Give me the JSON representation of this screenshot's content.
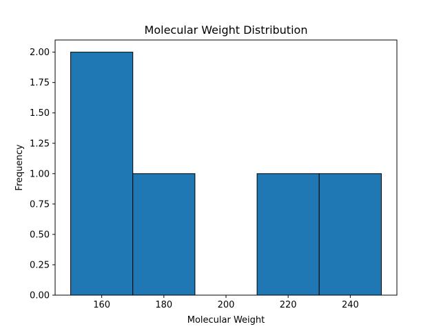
{
  "chart_data": {
    "type": "bar",
    "title": "Molecular Weight Distribution",
    "xlabel": "Molecular Weight",
    "ylabel": "Frequency",
    "bins": [
      {
        "start": 150,
        "end": 170,
        "count": 2
      },
      {
        "start": 170,
        "end": 190,
        "count": 1
      },
      {
        "start": 190,
        "end": 210,
        "count": 0
      },
      {
        "start": 210,
        "end": 230,
        "count": 1
      },
      {
        "start": 230,
        "end": 250,
        "count": 1
      }
    ],
    "xlim": [
      145,
      255
    ],
    "ylim": [
      0,
      2.1
    ],
    "xticks": [
      160,
      180,
      200,
      220,
      240
    ],
    "xtick_labels": [
      "160",
      "180",
      "200",
      "220",
      "240"
    ],
    "yticks": [
      0,
      0.25,
      0.5,
      0.75,
      1.0,
      1.25,
      1.5,
      1.75,
      2.0
    ],
    "ytick_labels": [
      "0.00",
      "0.25",
      "0.50",
      "0.75",
      "1.00",
      "1.25",
      "1.50",
      "1.75",
      "2.00"
    ],
    "bar_color": "#1f77b4",
    "edge_color": "#000000",
    "grid": false,
    "legend": "none"
  }
}
